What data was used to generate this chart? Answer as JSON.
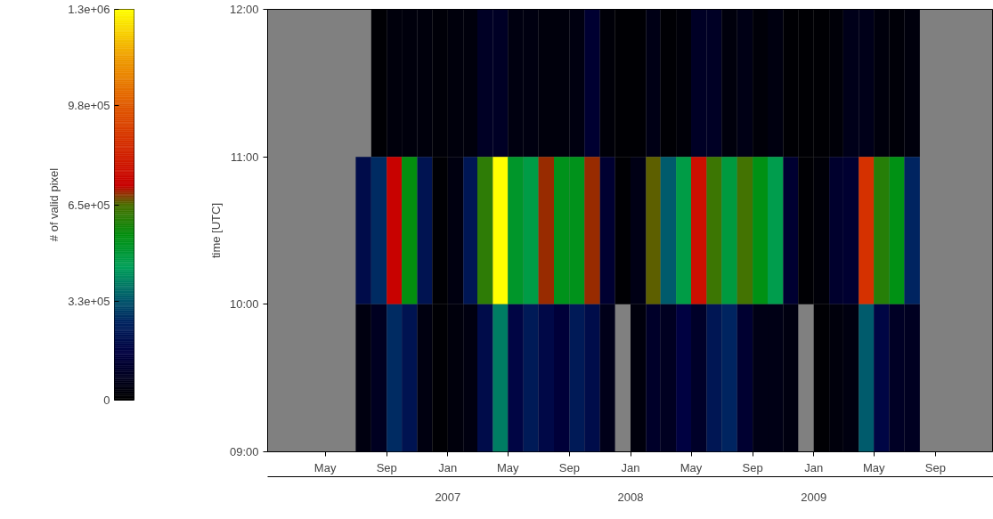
{
  "chart_data": {
    "type": "heatmap",
    "ylabel": "time [UTC]",
    "clabel": "# of valid pixel",
    "x": [
      "2006-07-16",
      "2006-08-16",
      "2006-09-16",
      "2006-10-16",
      "2006-11-16",
      "2006-12-16",
      "2007-01-16",
      "2007-02-16",
      "2007-03-16",
      "2007-04-16",
      "2007-05-16",
      "2007-06-16",
      "2007-07-16",
      "2007-08-16",
      "2007-09-16",
      "2007-10-16",
      "2007-11-16",
      "2007-12-16",
      "2008-01-16",
      "2008-02-16",
      "2008-03-16",
      "2008-04-16",
      "2008-05-16",
      "2008-06-16",
      "2008-07-16",
      "2008-08-16",
      "2008-09-16",
      "2008-10-16",
      "2008-11-16",
      "2008-12-16",
      "2009-01-16",
      "2009-02-16",
      "2009-03-16",
      "2009-04-16",
      "2009-05-16",
      "2009-06-16",
      "2009-07-16"
    ],
    "cells": [
      [
        null,
        10000,
        30000,
        30000,
        30000,
        20000,
        30000,
        30000,
        90000,
        90000,
        40000,
        40000,
        30000,
        30000,
        40000,
        120000,
        20000,
        10000,
        10000,
        50000,
        10000,
        20000,
        90000,
        90000,
        30000,
        50000,
        20000,
        40000,
        10000,
        10000,
        10000,
        20000,
        60000,
        60000,
        30000,
        20000,
        30000
      ],
      [
        190000,
        270000,
        720000,
        550000,
        210000,
        10000,
        40000,
        220000,
        610000,
        1300000,
        510000,
        470000,
        690000,
        530000,
        530000,
        690000,
        120000,
        10000,
        50000,
        660000,
        340000,
        470000,
        760000,
        630000,
        480000,
        640000,
        540000,
        460000,
        120000,
        10000,
        20000,
        110000,
        120000,
        860000,
        600000,
        540000,
        260000
      ],
      [
        40000,
        80000,
        270000,
        210000,
        40000,
        10000,
        30000,
        40000,
        190000,
        390000,
        170000,
        230000,
        180000,
        140000,
        230000,
        190000,
        60000,
        null,
        30000,
        100000,
        80000,
        160000,
        100000,
        220000,
        260000,
        120000,
        50000,
        50000,
        40000,
        null,
        10000,
        30000,
        40000,
        340000,
        170000,
        90000,
        80000
      ]
    ],
    "clim": [
      0,
      1300000
    ],
    "cticks": [
      0,
      {
        "value": 330000,
        "label": "3.3e+05"
      },
      {
        "value": 650000,
        "label": "6.5e+05"
      },
      {
        "value": 980000,
        "label": "9.8e+05"
      },
      {
        "value": 1300000,
        "label": "1.3e+06"
      }
    ],
    "xlim": [
      "2006-01-06",
      "2009-12-26"
    ],
    "xticks": [
      {
        "value": "2006-05-01",
        "label": "May"
      },
      {
        "value": "2006-09-01",
        "label": "Sep"
      },
      {
        "value": "2007-01-01",
        "label": "Jan"
      },
      {
        "value": "2007-05-01",
        "label": "May"
      },
      {
        "value": "2007-09-01",
        "label": "Sep"
      },
      {
        "value": "2008-01-01",
        "label": "Jan"
      },
      {
        "value": "2008-05-01",
        "label": "May"
      },
      {
        "value": "2008-09-01",
        "label": "Sep"
      },
      {
        "value": "2009-01-01",
        "label": "Jan"
      },
      {
        "value": "2009-05-01",
        "label": "May"
      },
      {
        "value": "2009-09-01",
        "label": "Sep"
      }
    ],
    "x2lim": [
      "2006-01-06",
      "2009-12-26"
    ],
    "x2ticks": [
      {
        "value": "2007-01-01",
        "label": "2007"
      },
      {
        "value": "2008-01-01",
        "label": "2008"
      },
      {
        "value": "2009-01-01",
        "label": "2009"
      }
    ],
    "ylim": [
      9,
      12
    ],
    "yticks": [
      {
        "value": 9,
        "label": "09:00"
      },
      {
        "value": 10,
        "label": "10:00"
      },
      {
        "value": 11,
        "label": "11:00"
      },
      {
        "value": 12,
        "label": "12:00"
      }
    ],
    "grid": false
  }
}
